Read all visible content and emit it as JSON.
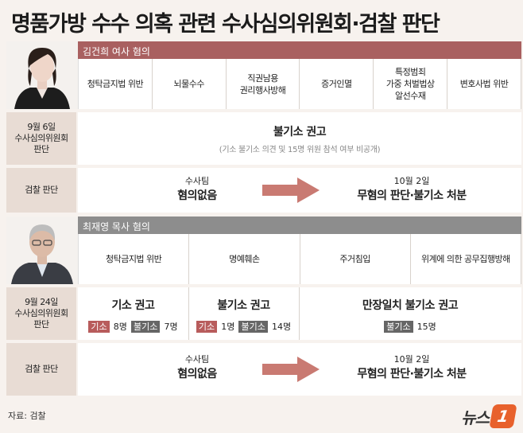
{
  "title": "명품가방 수수 의혹 관련 수사심의위원회·검찰 판단",
  "section1": {
    "header": "김건희 여사 혐의",
    "charges": [
      "청탁금지법 위반",
      "뇌물수수",
      "직권남용\n권리행사방해",
      "증거인멸",
      "특정범죄\n가중 처벌법상\n알선수재",
      "변호사법 위반"
    ],
    "committee_label": "9월 6일\n수사심의위원회\n판단",
    "committee_result": "불기소 권고",
    "committee_note": "(기소 불기소 의견 및 15명 위원 참석 여부 비공개)",
    "prosecution_label": "검찰 판단",
    "prosecution_team": "수사팀",
    "prosecution_team_result": "혐의없음",
    "prosecution_date": "10월 2일",
    "prosecution_final": "무혐의 판단·불기소 처분"
  },
  "section2": {
    "header": "최재영 목사 혐의",
    "charges": [
      "청탁금지법 위반",
      "명예훼손",
      "주거침입",
      "위계에 의한 공무집행방해"
    ],
    "committee_label": "9월 24일\n수사심의위원회\n판단",
    "results": [
      {
        "title": "기소 권고",
        "tags": [
          {
            "label": "기소",
            "style": "red",
            "count": "8명"
          },
          {
            "label": "불기소",
            "style": "gray",
            "count": "7명"
          }
        ]
      },
      {
        "title": "불기소 권고",
        "tags": [
          {
            "label": "기소",
            "style": "red",
            "count": "1명"
          },
          {
            "label": "불기소",
            "style": "gray",
            "count": "14명"
          }
        ]
      },
      {
        "title": "만장일치 불기소 권고",
        "tags": [
          {
            "label": "불기소",
            "style": "gray",
            "count": "15명"
          }
        ]
      }
    ],
    "prosecution_label": "검찰 판단",
    "prosecution_team": "수사팀",
    "prosecution_team_result": "혐의없음",
    "prosecution_date": "10월 2일",
    "prosecution_final": "무혐의 판단·불기소 처분"
  },
  "source": "자료: 검찰",
  "logo": {
    "text": "뉴스",
    "mark": "1"
  },
  "colors": {
    "accent_red": "#a96060",
    "header_gray": "#8d8d8d",
    "label_bg": "#e8dcd4",
    "arrow": "#c97a72",
    "logo": "#e8612c"
  }
}
